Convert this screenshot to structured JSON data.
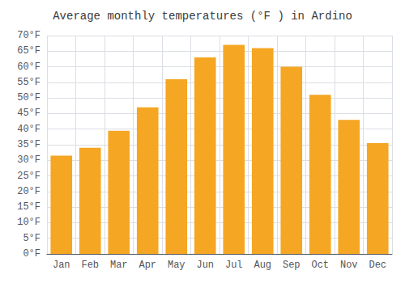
{
  "chart_data": {
    "type": "bar",
    "title": "Average monthly temperatures (°F ) in Ardino",
    "categories": [
      "Jan",
      "Feb",
      "Mar",
      "Apr",
      "May",
      "Jun",
      "Jul",
      "Aug",
      "Sep",
      "Oct",
      "Nov",
      "Dec"
    ],
    "values": [
      31.5,
      34.0,
      39.5,
      47.0,
      56.0,
      63.0,
      67.0,
      66.0,
      60.0,
      51.0,
      43.0,
      35.5
    ],
    "color": "#F5A623",
    "ylim": [
      0,
      70
    ],
    "yticks": [
      {
        "value": 0,
        "label": "0°F"
      },
      {
        "value": 5,
        "label": "5°F"
      },
      {
        "value": 10,
        "label": "10°F"
      },
      {
        "value": 15,
        "label": "15°F"
      },
      {
        "value": 20,
        "label": "20°F"
      },
      {
        "value": 25,
        "label": "25°F"
      },
      {
        "value": 30,
        "label": "30°F"
      },
      {
        "value": 35,
        "label": "35°F"
      },
      {
        "value": 40,
        "label": "40°F"
      },
      {
        "value": 45,
        "label": "45°F"
      },
      {
        "value": 50,
        "label": "50°F"
      },
      {
        "value": 55,
        "label": "55°F"
      },
      {
        "value": 60,
        "label": "60°F"
      },
      {
        "value": 65,
        "label": "65°F"
      },
      {
        "value": 70,
        "label": "70°F"
      }
    ],
    "grid": true
  }
}
